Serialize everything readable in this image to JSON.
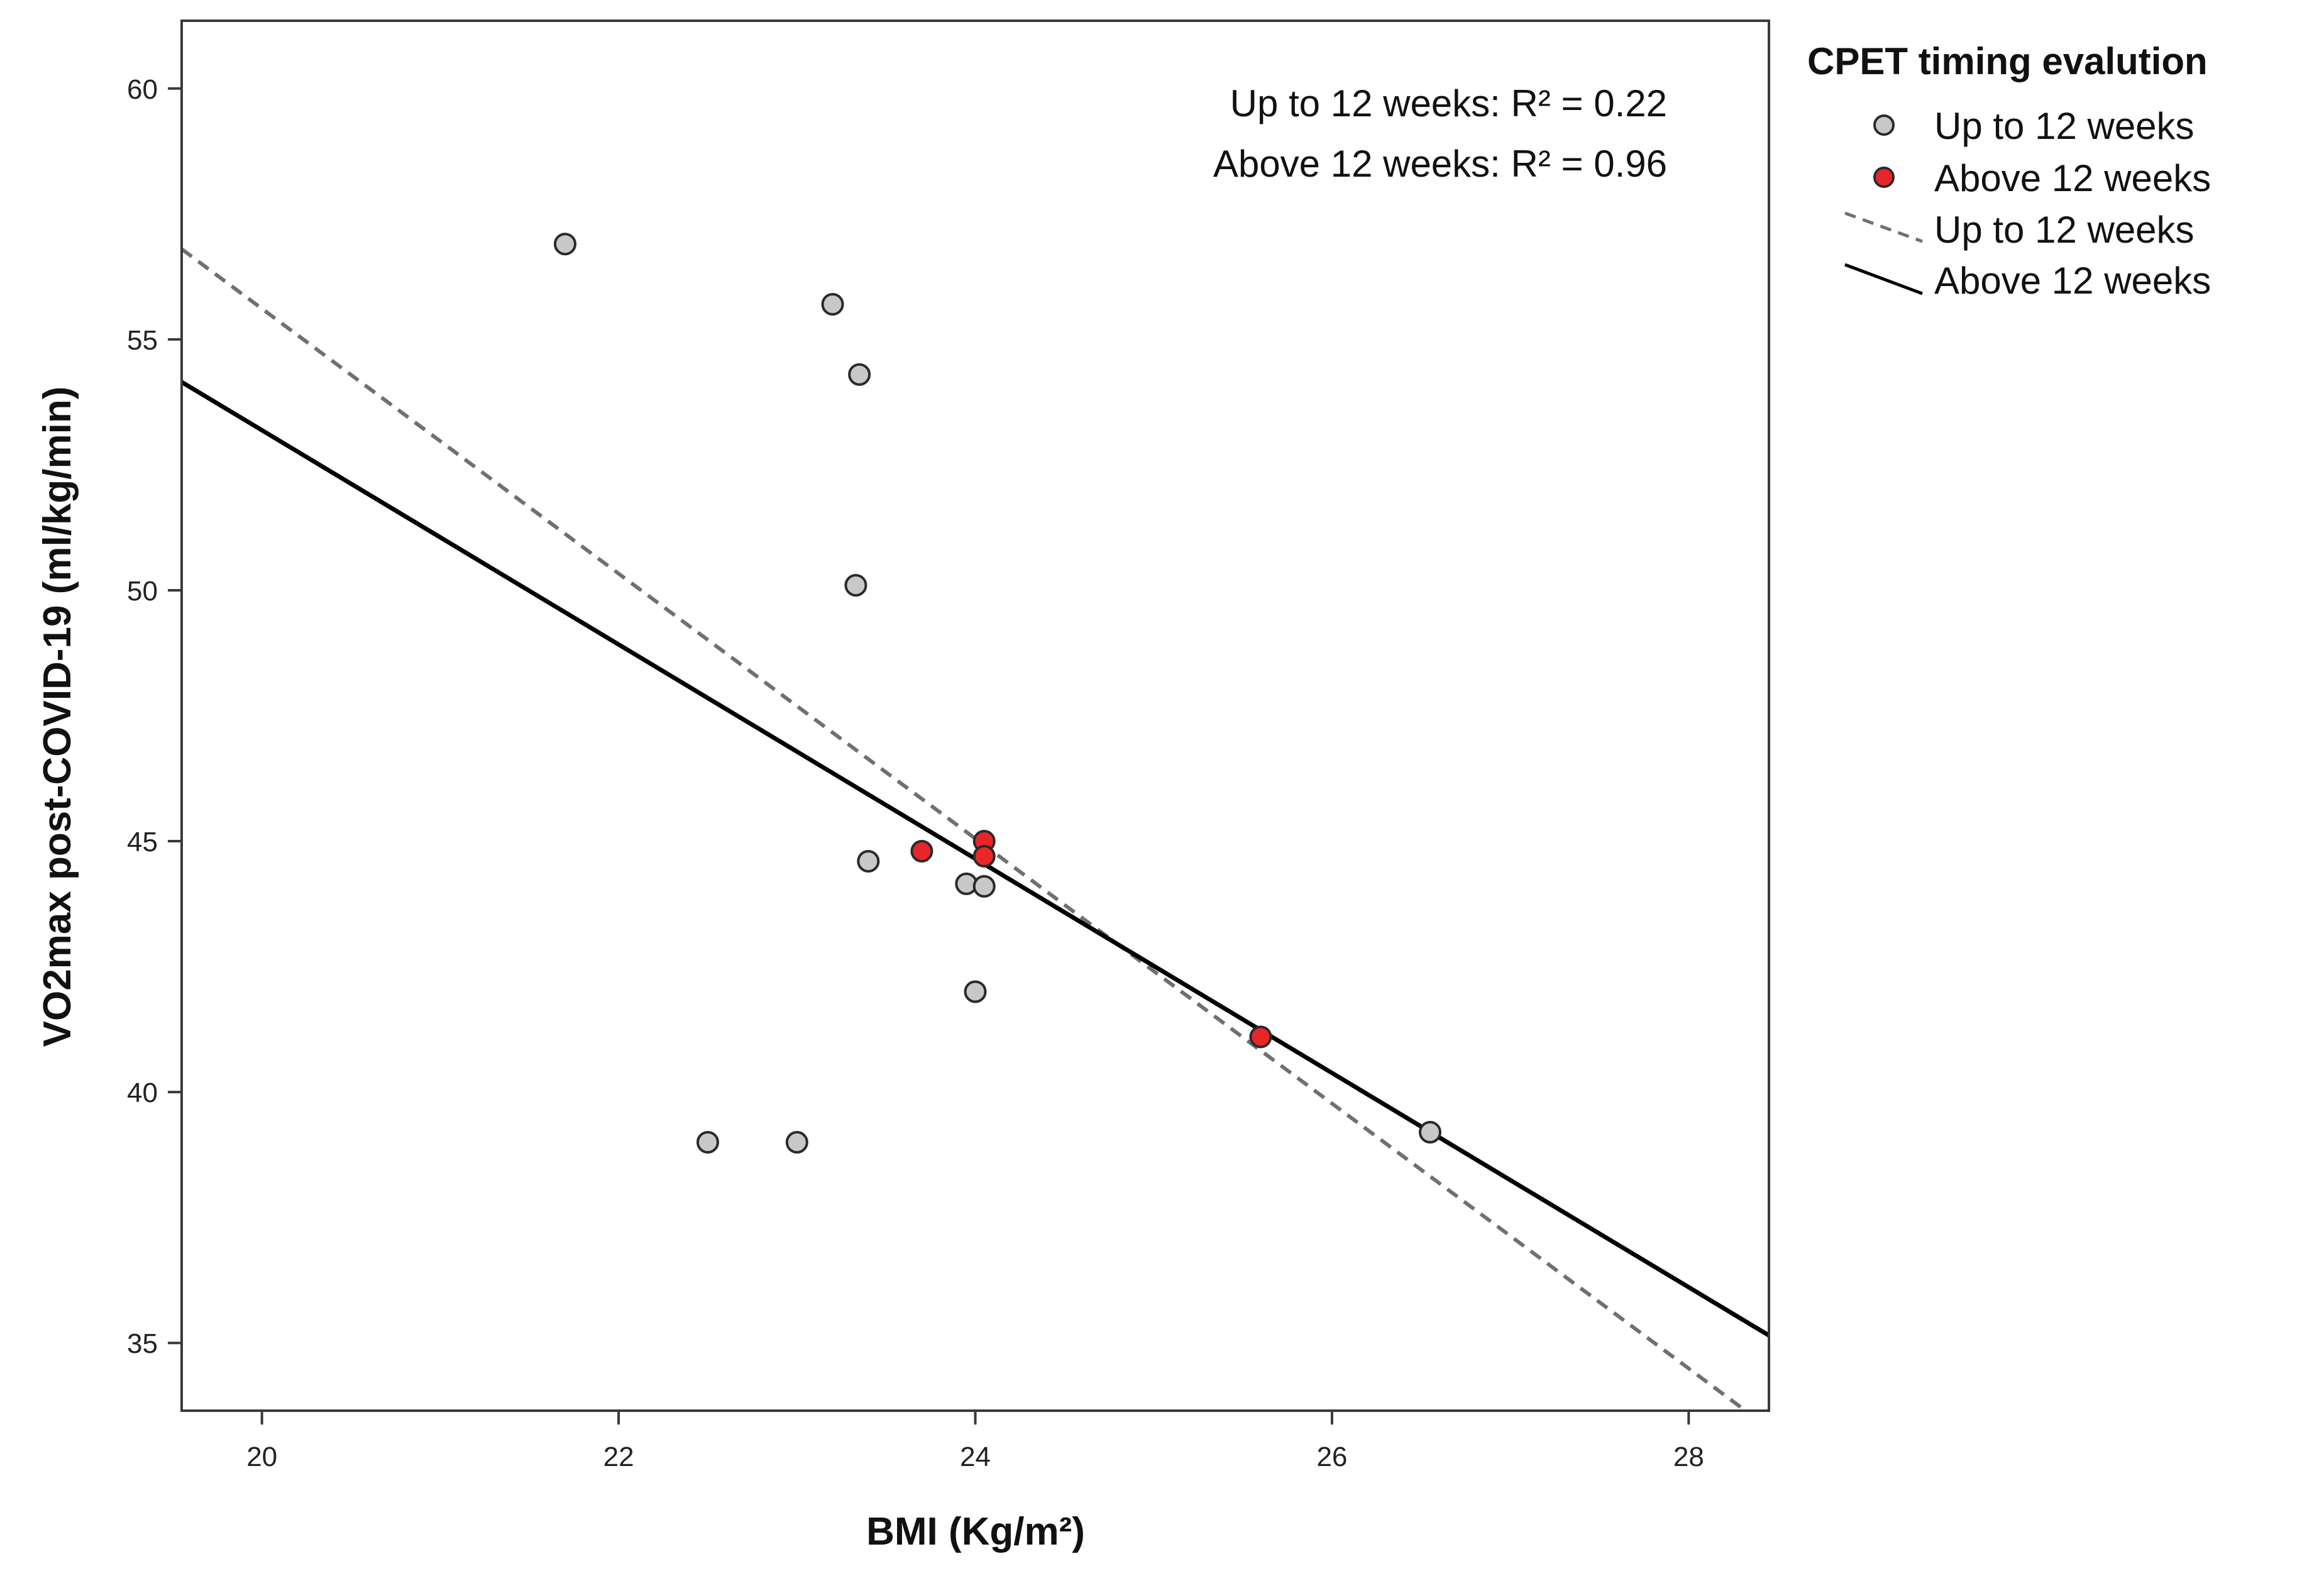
{
  "chart_data": {
    "type": "scatter",
    "title": "",
    "xlabel": "BMI (Kg/m²)",
    "ylabel": "VO2max post-COVID-19 (ml/kg/min)",
    "xlim": [
      19.55,
      28.45
    ],
    "ylim": [
      33.65,
      61.35
    ],
    "x_ticks": [
      20,
      22,
      24,
      26,
      28
    ],
    "y_ticks": [
      35,
      40,
      45,
      50,
      55,
      60
    ],
    "grid": false,
    "legend_title": "CPET timing evalution",
    "legend_position": "right",
    "colors": {
      "up_to_12_fill": "#c8c8c8",
      "above_12_fill": "#e8262a",
      "marker_stroke": "#2a2a2a",
      "dashed_line": "#707070",
      "solid_line": "#000000"
    },
    "series": [
      {
        "name": "Up to 12 weeks",
        "kind": "points",
        "points": [
          {
            "x": 21.7,
            "y": 56.9
          },
          {
            "x": 23.2,
            "y": 55.7
          },
          {
            "x": 23.35,
            "y": 54.3
          },
          {
            "x": 23.33,
            "y": 50.1
          },
          {
            "x": 23.4,
            "y": 44.6
          },
          {
            "x": 23.95,
            "y": 44.15
          },
          {
            "x": 24.05,
            "y": 44.1
          },
          {
            "x": 24.0,
            "y": 42.0
          },
          {
            "x": 22.5,
            "y": 39.0
          },
          {
            "x": 23.0,
            "y": 39.0
          },
          {
            "x": 26.55,
            "y": 39.2
          }
        ]
      },
      {
        "name": "Above 12 weeks",
        "kind": "points",
        "points": [
          {
            "x": 23.7,
            "y": 44.8
          },
          {
            "x": 24.05,
            "y": 45.0
          },
          {
            "x": 24.05,
            "y": 44.7
          },
          {
            "x": 25.6,
            "y": 41.1
          }
        ]
      },
      {
        "name": "Up to 12 weeks",
        "kind": "fit-line",
        "style": "dashed",
        "start": {
          "x": 19.55,
          "y": 56.8
        },
        "end": {
          "x": 28.3,
          "y": 33.7
        }
      },
      {
        "name": "Above 12 weeks",
        "kind": "fit-line",
        "style": "solid",
        "start": {
          "x": 19.55,
          "y": 54.15
        },
        "end": {
          "x": 28.45,
          "y": 35.15
        }
      }
    ],
    "annotations": [
      "Up to 12 weeks: R² = 0.22",
      "Above 12 weeks: R² = 0.96"
    ]
  }
}
